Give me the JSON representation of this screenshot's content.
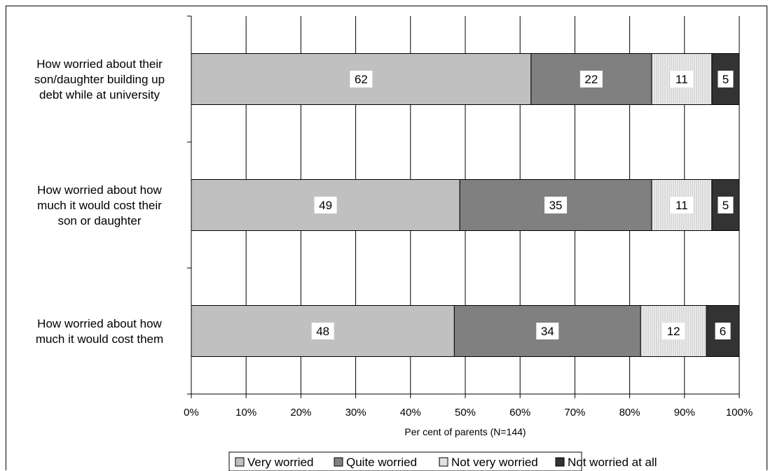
{
  "chart_data": {
    "type": "bar",
    "orientation": "horizontal",
    "stacked": true,
    "percent_scale": true,
    "categories": [
      [
        "How worried about their",
        "son/daughter building up",
        "debt while at university"
      ],
      [
        "How worried about how",
        "much it would cost their",
        "son or daughter"
      ],
      [
        "How worried about how",
        "much it would cost them"
      ]
    ],
    "series": [
      {
        "name": "Very worried",
        "values": [
          62,
          49,
          48
        ],
        "color": "#c0c0c0"
      },
      {
        "name": "Quite worried",
        "values": [
          22,
          35,
          34
        ],
        "color": "#808080"
      },
      {
        "name": "Not very worried",
        "values": [
          11,
          11,
          12
        ],
        "color": "#e8e8e8",
        "pattern": "vertical-lines"
      },
      {
        "name": "Not worried at all",
        "values": [
          5,
          5,
          6
        ],
        "color": "#333333"
      }
    ],
    "xlabel": "Per cent of parents (N=144)",
    "xlim": [
      0,
      100
    ],
    "x_ticks": [
      "0%",
      "10%",
      "20%",
      "30%",
      "40%",
      "50%",
      "60%",
      "70%",
      "80%",
      "90%",
      "100%"
    ],
    "grid": "vertical",
    "legend_position": "bottom"
  }
}
